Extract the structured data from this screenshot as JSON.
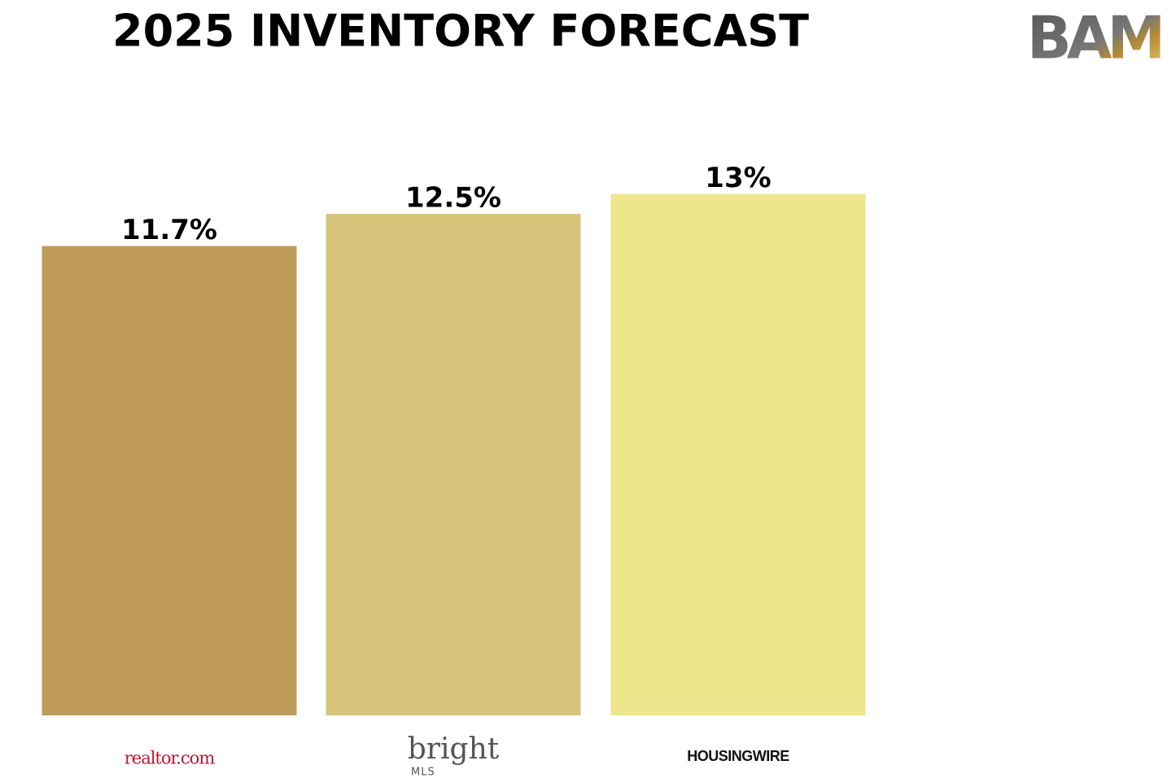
{
  "brand": "BAM",
  "chart_data": {
    "type": "bar",
    "title": "2025 INVENTORY FORECAST",
    "categories": [
      "realtor.com",
      "bright",
      "HOUSINGWIRE"
    ],
    "sublabels": [
      null,
      "MLS",
      null
    ],
    "values": [
      11.7,
      12.5,
      13
    ],
    "value_labels": [
      "11.7%",
      "12.5%",
      "13%"
    ],
    "colors": [
      "#bf9c5a",
      "#d8c47a",
      "#ede58b"
    ]
  }
}
